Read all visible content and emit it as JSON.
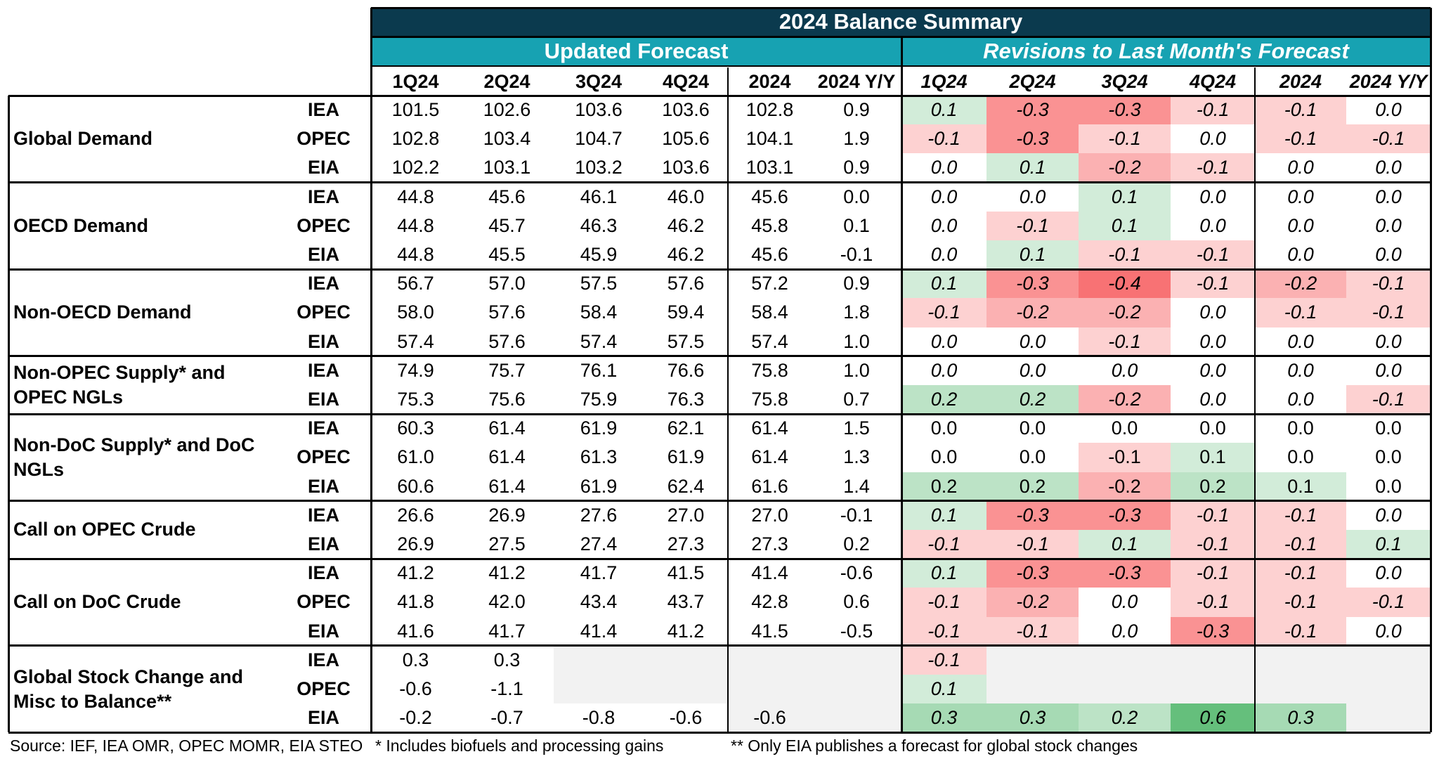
{
  "title": "2024 Balance Summary",
  "group_updated": "Updated Forecast",
  "group_revisions": "Revisions to Last Month's Forecast",
  "columns": [
    "1Q24",
    "2Q24",
    "3Q24",
    "4Q24",
    "2024",
    "2024 Y/Y"
  ],
  "color_scale": {
    "positive": "#63be7b",
    "negative": "#f8696b",
    "neutral": "#ffffff"
  },
  "sections": [
    {
      "label": "Global Demand",
      "rows": [
        {
          "source": "IEA",
          "forecast": [
            "101.5",
            "102.6",
            "103.6",
            "103.6",
            "102.8",
            "0.9"
          ],
          "revisions": [
            "0.1",
            "-0.3",
            "-0.3",
            "-0.1",
            "-0.1",
            "0.0"
          ]
        },
        {
          "source": "OPEC",
          "forecast": [
            "102.8",
            "103.4",
            "104.7",
            "105.6",
            "104.1",
            "1.9"
          ],
          "revisions": [
            "-0.1",
            "-0.3",
            "-0.1",
            "0.0",
            "-0.1",
            "-0.1"
          ]
        },
        {
          "source": "EIA",
          "forecast": [
            "102.2",
            "103.1",
            "103.2",
            "103.6",
            "103.1",
            "0.9"
          ],
          "revisions": [
            "0.0",
            "0.1",
            "-0.2",
            "-0.1",
            "0.0",
            "0.0"
          ]
        }
      ]
    },
    {
      "label": "OECD Demand",
      "rows": [
        {
          "source": "IEA",
          "forecast": [
            "44.8",
            "45.6",
            "46.1",
            "46.0",
            "45.6",
            "0.0"
          ],
          "revisions": [
            "0.0",
            "0.0",
            "0.1",
            "0.0",
            "0.0",
            "0.0"
          ]
        },
        {
          "source": "OPEC",
          "forecast": [
            "44.8",
            "45.7",
            "46.3",
            "46.2",
            "45.8",
            "0.1"
          ],
          "revisions": [
            "0.0",
            "-0.1",
            "0.1",
            "0.0",
            "0.0",
            "0.0"
          ]
        },
        {
          "source": "EIA",
          "forecast": [
            "44.8",
            "45.5",
            "45.9",
            "46.2",
            "45.6",
            "-0.1"
          ],
          "revisions": [
            "0.0",
            "0.1",
            "-0.1",
            "-0.1",
            "0.0",
            "0.0"
          ]
        }
      ]
    },
    {
      "label": "Non-OECD Demand",
      "rows": [
        {
          "source": "IEA",
          "forecast": [
            "56.7",
            "57.0",
            "57.5",
            "57.6",
            "57.2",
            "0.9"
          ],
          "revisions": [
            "0.1",
            "-0.3",
            "-0.4",
            "-0.1",
            "-0.2",
            "-0.1"
          ]
        },
        {
          "source": "OPEC",
          "forecast": [
            "58.0",
            "57.6",
            "58.4",
            "59.4",
            "58.4",
            "1.8"
          ],
          "revisions": [
            "-0.1",
            "-0.2",
            "-0.2",
            "0.0",
            "-0.1",
            "-0.1"
          ]
        },
        {
          "source": "EIA",
          "forecast": [
            "57.4",
            "57.6",
            "57.4",
            "57.5",
            "57.4",
            "1.0"
          ],
          "revisions": [
            "0.0",
            "0.0",
            "-0.1",
            "0.0",
            "0.0",
            "0.0"
          ]
        }
      ]
    },
    {
      "label": "Non-OPEC Supply* and OPEC NGLs",
      "rows": [
        {
          "source": "IEA",
          "forecast": [
            "74.9",
            "75.7",
            "76.1",
            "76.6",
            "75.8",
            "1.0"
          ],
          "revisions": [
            "0.0",
            "0.0",
            "0.0",
            "0.0",
            "0.0",
            "0.0"
          ]
        },
        {
          "source": "EIA",
          "forecast": [
            "75.3",
            "75.6",
            "75.9",
            "76.3",
            "75.8",
            "0.7"
          ],
          "revisions": [
            "0.2",
            "0.2",
            "-0.2",
            "0.0",
            "0.0",
            "-0.1"
          ]
        }
      ]
    },
    {
      "label": "Non-DoC Supply* and DoC NGLs",
      "rev_style": "upright",
      "rows": [
        {
          "source": "IEA",
          "forecast": [
            "60.3",
            "61.4",
            "61.9",
            "62.1",
            "61.4",
            "1.5"
          ],
          "revisions": [
            "0.0",
            "0.0",
            "0.0",
            "0.0",
            "0.0",
            "0.0"
          ]
        },
        {
          "source": "OPEC",
          "forecast": [
            "61.0",
            "61.4",
            "61.3",
            "61.9",
            "61.4",
            "1.3"
          ],
          "revisions": [
            "0.0",
            "0.0",
            "-0.1",
            "0.1",
            "0.0",
            "0.0"
          ]
        },
        {
          "source": "EIA",
          "forecast": [
            "60.6",
            "61.4",
            "61.9",
            "62.4",
            "61.6",
            "1.4"
          ],
          "revisions": [
            "0.2",
            "0.2",
            "-0.2",
            "0.2",
            "0.1",
            "0.0"
          ]
        }
      ]
    },
    {
      "label": "Call on OPEC Crude",
      "rows": [
        {
          "source": "IEA",
          "forecast": [
            "26.6",
            "26.9",
            "27.6",
            "27.0",
            "27.0",
            "-0.1"
          ],
          "revisions": [
            "0.1",
            "-0.3",
            "-0.3",
            "-0.1",
            "-0.1",
            "0.0"
          ]
        },
        {
          "source": "EIA",
          "forecast": [
            "26.9",
            "27.5",
            "27.4",
            "27.3",
            "27.3",
            "0.2"
          ],
          "revisions": [
            "-0.1",
            "-0.1",
            "0.1",
            "-0.1",
            "-0.1",
            "0.1"
          ]
        }
      ]
    },
    {
      "label": "Call on DoC Crude",
      "rows": [
        {
          "source": "IEA",
          "forecast": [
            "41.2",
            "41.2",
            "41.7",
            "41.5",
            "41.4",
            "-0.6"
          ],
          "revisions": [
            "0.1",
            "-0.3",
            "-0.3",
            "-0.1",
            "-0.1",
            "0.0"
          ]
        },
        {
          "source": "OPEC",
          "forecast": [
            "41.8",
            "42.0",
            "43.4",
            "43.7",
            "42.8",
            "0.6"
          ],
          "revisions": [
            "-0.1",
            "-0.2",
            "0.0",
            "-0.1",
            "-0.1",
            "-0.1"
          ]
        },
        {
          "source": "EIA",
          "forecast": [
            "41.6",
            "41.7",
            "41.4",
            "41.2",
            "41.5",
            "-0.5"
          ],
          "revisions": [
            "-0.1",
            "-0.1",
            "0.0",
            "-0.3",
            "-0.1",
            "0.0"
          ]
        }
      ]
    },
    {
      "label": "Global Stock Change and Misc to Balance**",
      "rows": [
        {
          "source": "IEA",
          "forecast": [
            "0.3",
            "0.3",
            "",
            "",
            "",
            ""
          ],
          "revisions": [
            "-0.1",
            "",
            "",
            "",
            "",
            ""
          ]
        },
        {
          "source": "OPEC",
          "forecast": [
            "-0.6",
            "-1.1",
            "",
            "",
            "",
            ""
          ],
          "revisions": [
            "0.1",
            "",
            "",
            "",
            "",
            ""
          ]
        },
        {
          "source": "EIA",
          "forecast": [
            "-0.2",
            "-0.7",
            "-0.8",
            "-0.6",
            "-0.6",
            ""
          ],
          "revisions": [
            "0.3",
            "0.3",
            "0.2",
            "0.6",
            "0.3",
            ""
          ]
        }
      ]
    }
  ],
  "footer": {
    "source": "Source: IEF, IEA OMR, OPEC MOMR, EIA STEO",
    "note1": "* Includes biofuels and processing gains",
    "note2": "** Only EIA publishes a forecast for global stock changes"
  }
}
